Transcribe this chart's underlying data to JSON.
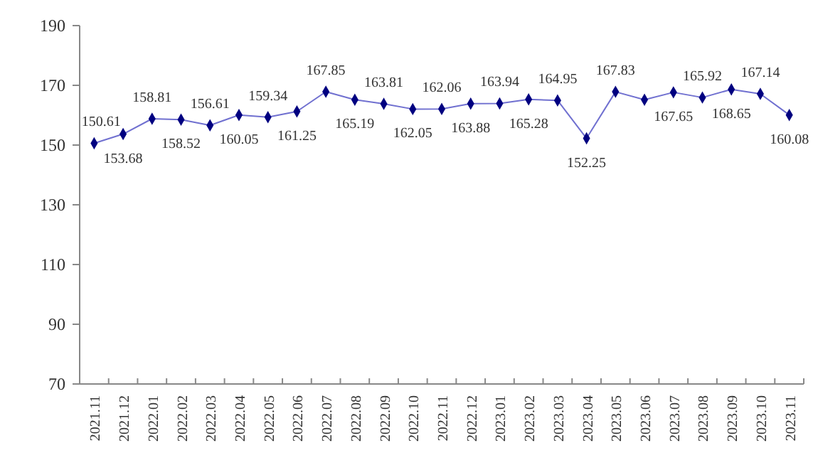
{
  "chart_data": {
    "type": "line",
    "categories": [
      "2021.11",
      "2021.12",
      "2022.01",
      "2022.02",
      "2022.03",
      "2022.04",
      "2022.05",
      "2022.06",
      "2022.07",
      "2022.08",
      "2022.09",
      "2022.10",
      "2022.11",
      "2022.12",
      "2023.01",
      "2023.02",
      "2023.03",
      "2023.04",
      "2023.05",
      "2023.06",
      "2023.07",
      "2023.08",
      "2023.09",
      "2023.10",
      "2023.11"
    ],
    "series": [
      {
        "color": "#000080",
        "values": [
          150.61,
          153.68,
          158.81,
          158.52,
          156.61,
          160.05,
          159.34,
          161.25,
          167.85,
          165.19,
          163.81,
          162.05,
          162.06,
          163.88,
          163.94,
          165.28,
          164.95,
          152.25,
          167.83,
          165.2,
          167.65,
          165.92,
          168.65,
          167.14,
          160.08
        ],
        "value_labels": [
          "150.61",
          "153.68",
          "158.81",
          "158.52",
          "156.61",
          "160.05",
          "159.34",
          "161.25",
          "167.85",
          "165.19",
          "163.81",
          "162.05",
          "162.06",
          "163.88",
          "163.94",
          "165.28",
          "164.95",
          "152.25",
          "167.83",
          null,
          "167.65",
          "165.92",
          "168.65",
          "167.14",
          "160.08"
        ]
      }
    ],
    "ylim": [
      70,
      190
    ],
    "yticks": [
      70,
      90,
      110,
      130,
      150,
      170,
      190
    ],
    "grid": false,
    "legend": false,
    "marker": "diamond",
    "line_style": "solid"
  }
}
